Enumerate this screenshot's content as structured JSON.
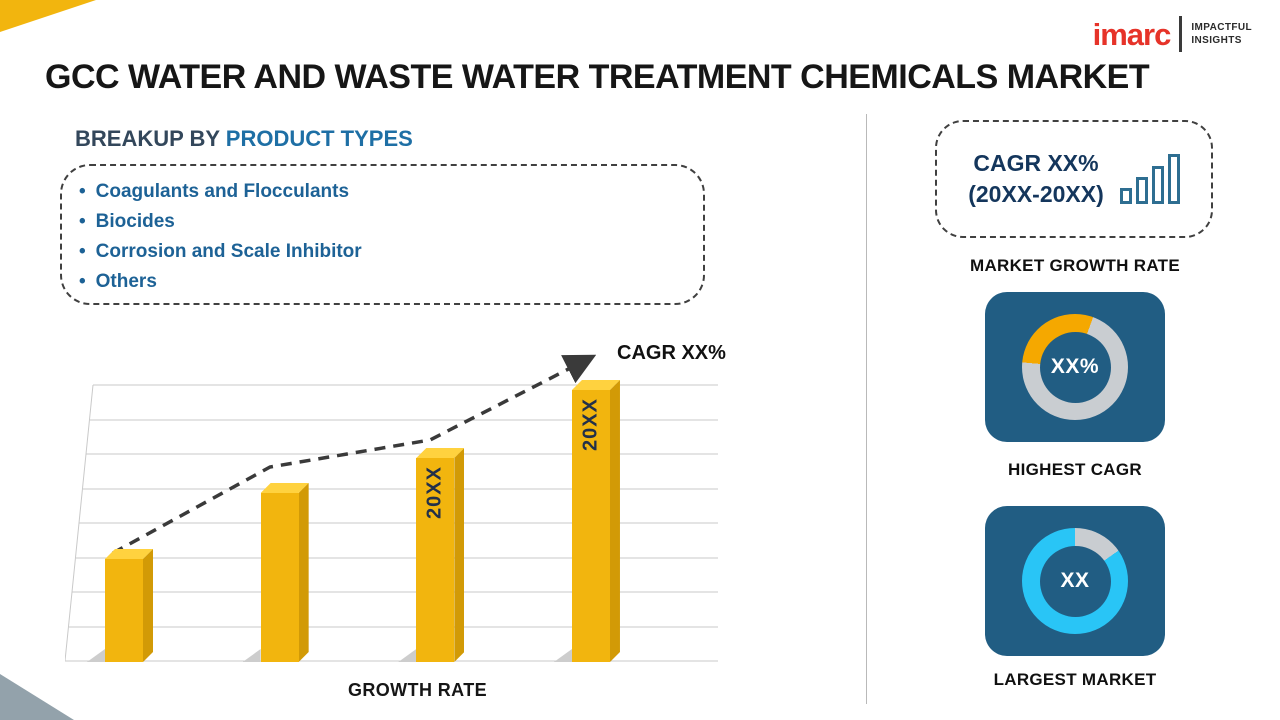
{
  "header": {
    "title": "GCC WATER AND WASTE WATER TREATMENT CHEMICALS MARKET",
    "logo": {
      "brand": "imarc",
      "tagline": [
        "IMPACTFUL",
        "INSIGHTS"
      ]
    }
  },
  "breakup": {
    "heading_prefix": "BREAKUP BY",
    "heading_highlight": "PRODUCT TYPES",
    "items": [
      "Coagulants and Flocculants",
      "Biocides",
      "Corrosion and Scale Inhibitor",
      "Others"
    ]
  },
  "chart_data": {
    "type": "bar",
    "title": "GROWTH RATE",
    "categories": [
      "",
      "",
      "20XX",
      "20XX"
    ],
    "values": [
      38,
      62,
      75,
      100
    ],
    "bar_labels": [
      "",
      "",
      "20XX",
      "20XX"
    ],
    "xlabel": "GROWTH RATE",
    "ylabel": "",
    "ylim": [
      0,
      100
    ],
    "grid": true,
    "legend": false,
    "trend_label": "CAGR XX%",
    "trend": "increasing dashed arrow"
  },
  "sidebar": {
    "growth_box": {
      "line1": "CAGR XX%",
      "line2": "(20XX-20XX)"
    },
    "market_growth_rate_label": "MARKET GROWTH RATE",
    "highest_cagr": {
      "value": "XX%",
      "label": "HIGHEST CAGR"
    },
    "largest_market": {
      "value": "XX",
      "label": "LARGEST MARKET"
    }
  },
  "colors": {
    "bar": "#F2B50E",
    "bar_top": "#FFD23F",
    "bar_side": "#D29A06",
    "brand_red": "#E63329",
    "heading_blue": "#1E6FA5",
    "list_blue": "#1D6296",
    "card_blue": "#215D83",
    "ring_base": "#C9CDD1",
    "highest_cagr_accent": "#F5A800",
    "largest_market_accent": "#29C5F6"
  }
}
